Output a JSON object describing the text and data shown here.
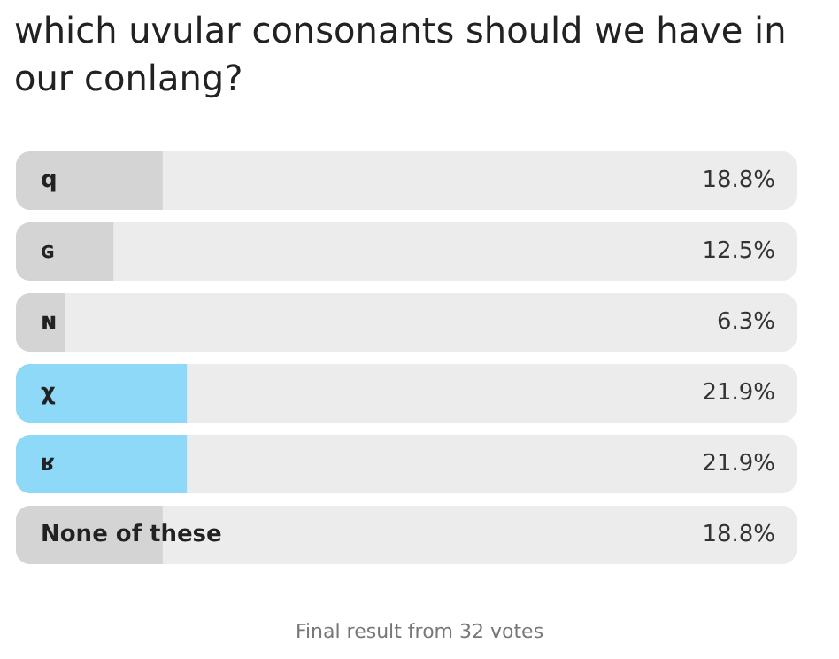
{
  "chart_data": {
    "type": "bar",
    "orientation": "horizontal",
    "title": "which uvular consonants should we have in our conlang?",
    "categories": [
      "q",
      "ɢ",
      "ɴ",
      "χ",
      "ʁ",
      "None of these"
    ],
    "values": [
      18.8,
      12.5,
      6.3,
      21.9,
      21.9,
      18.8
    ],
    "colors": [
      "#d4d4d4",
      "#d4d4d4",
      "#d4d4d4",
      "#8ed8f8",
      "#8ed8f8",
      "#d4d4d4"
    ],
    "value_labels": [
      "18.8%",
      "12.5%",
      "6.3%",
      "21.9%",
      "21.9%",
      "18.8%"
    ],
    "xlim": [
      0,
      100
    ],
    "tick_labels": "y",
    "annotations": [
      "Final result from 32 votes"
    ]
  }
}
